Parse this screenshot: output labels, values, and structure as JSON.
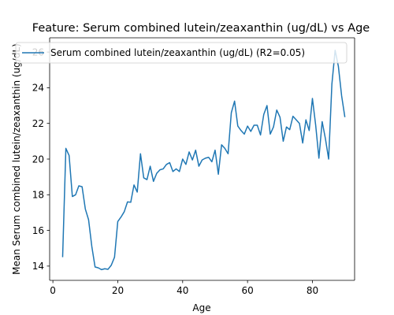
{
  "chart_data": {
    "type": "line",
    "title": "Feature: Serum combined lutein/zeaxanthin (ug/dL) vs Age",
    "xlabel": "Age",
    "ylabel": "Mean Serum combined lutein/zeaxanthin (ug/dL)",
    "xlim": [
      -1,
      93
    ],
    "ylim": [
      13.2,
      26.8
    ],
    "xticks": [
      0,
      20,
      40,
      60,
      80
    ],
    "yticks": [
      14,
      16,
      18,
      20,
      22,
      24,
      26
    ],
    "grid": false,
    "legend_position": "top-right",
    "series": [
      {
        "name": "Serum combined lutein/zeaxanthin (ug/dL) (R2=0.05)",
        "color": "#1f77b4",
        "x": [
          3,
          4,
          5,
          6,
          7,
          8,
          9,
          10,
          11,
          12,
          13,
          14,
          15,
          16,
          17,
          18,
          19,
          20,
          21,
          22,
          23,
          24,
          25,
          26,
          27,
          28,
          29,
          30,
          31,
          32,
          33,
          34,
          35,
          36,
          37,
          38,
          39,
          40,
          41,
          42,
          43,
          44,
          45,
          46,
          47,
          48,
          49,
          50,
          51,
          52,
          53,
          54,
          55,
          56,
          57,
          58,
          59,
          60,
          61,
          62,
          63,
          64,
          65,
          66,
          67,
          68,
          69,
          70,
          71,
          72,
          73,
          74,
          75,
          76,
          77,
          78,
          79,
          80,
          81,
          82,
          83,
          84,
          85,
          86,
          87,
          88,
          89,
          90
        ],
        "y": [
          14.5,
          20.6,
          20.2,
          17.9,
          18.0,
          18.5,
          18.45,
          17.2,
          16.6,
          15.1,
          13.95,
          13.9,
          13.8,
          13.85,
          13.82,
          14.05,
          14.5,
          16.5,
          16.75,
          17.05,
          17.6,
          17.58,
          18.55,
          18.15,
          20.3,
          18.95,
          18.85,
          19.6,
          18.75,
          19.2,
          19.4,
          19.45,
          19.7,
          19.8,
          19.3,
          19.45,
          19.3,
          20.0,
          19.7,
          20.4,
          19.95,
          20.5,
          19.6,
          19.95,
          20.05,
          20.1,
          19.85,
          20.5,
          19.15,
          20.8,
          20.6,
          20.3,
          22.6,
          23.25,
          21.85,
          21.6,
          21.4,
          21.85,
          21.55,
          21.9,
          21.9,
          21.35,
          22.5,
          23.0,
          21.4,
          21.8,
          22.75,
          22.35,
          21.0,
          21.8,
          21.65,
          22.4,
          22.2,
          22.0,
          20.9,
          22.2,
          21.6,
          23.4,
          21.9,
          20.05,
          22.1,
          21.15,
          20.0,
          24.2,
          26.1,
          25.2,
          23.55,
          22.35
        ]
      }
    ]
  }
}
